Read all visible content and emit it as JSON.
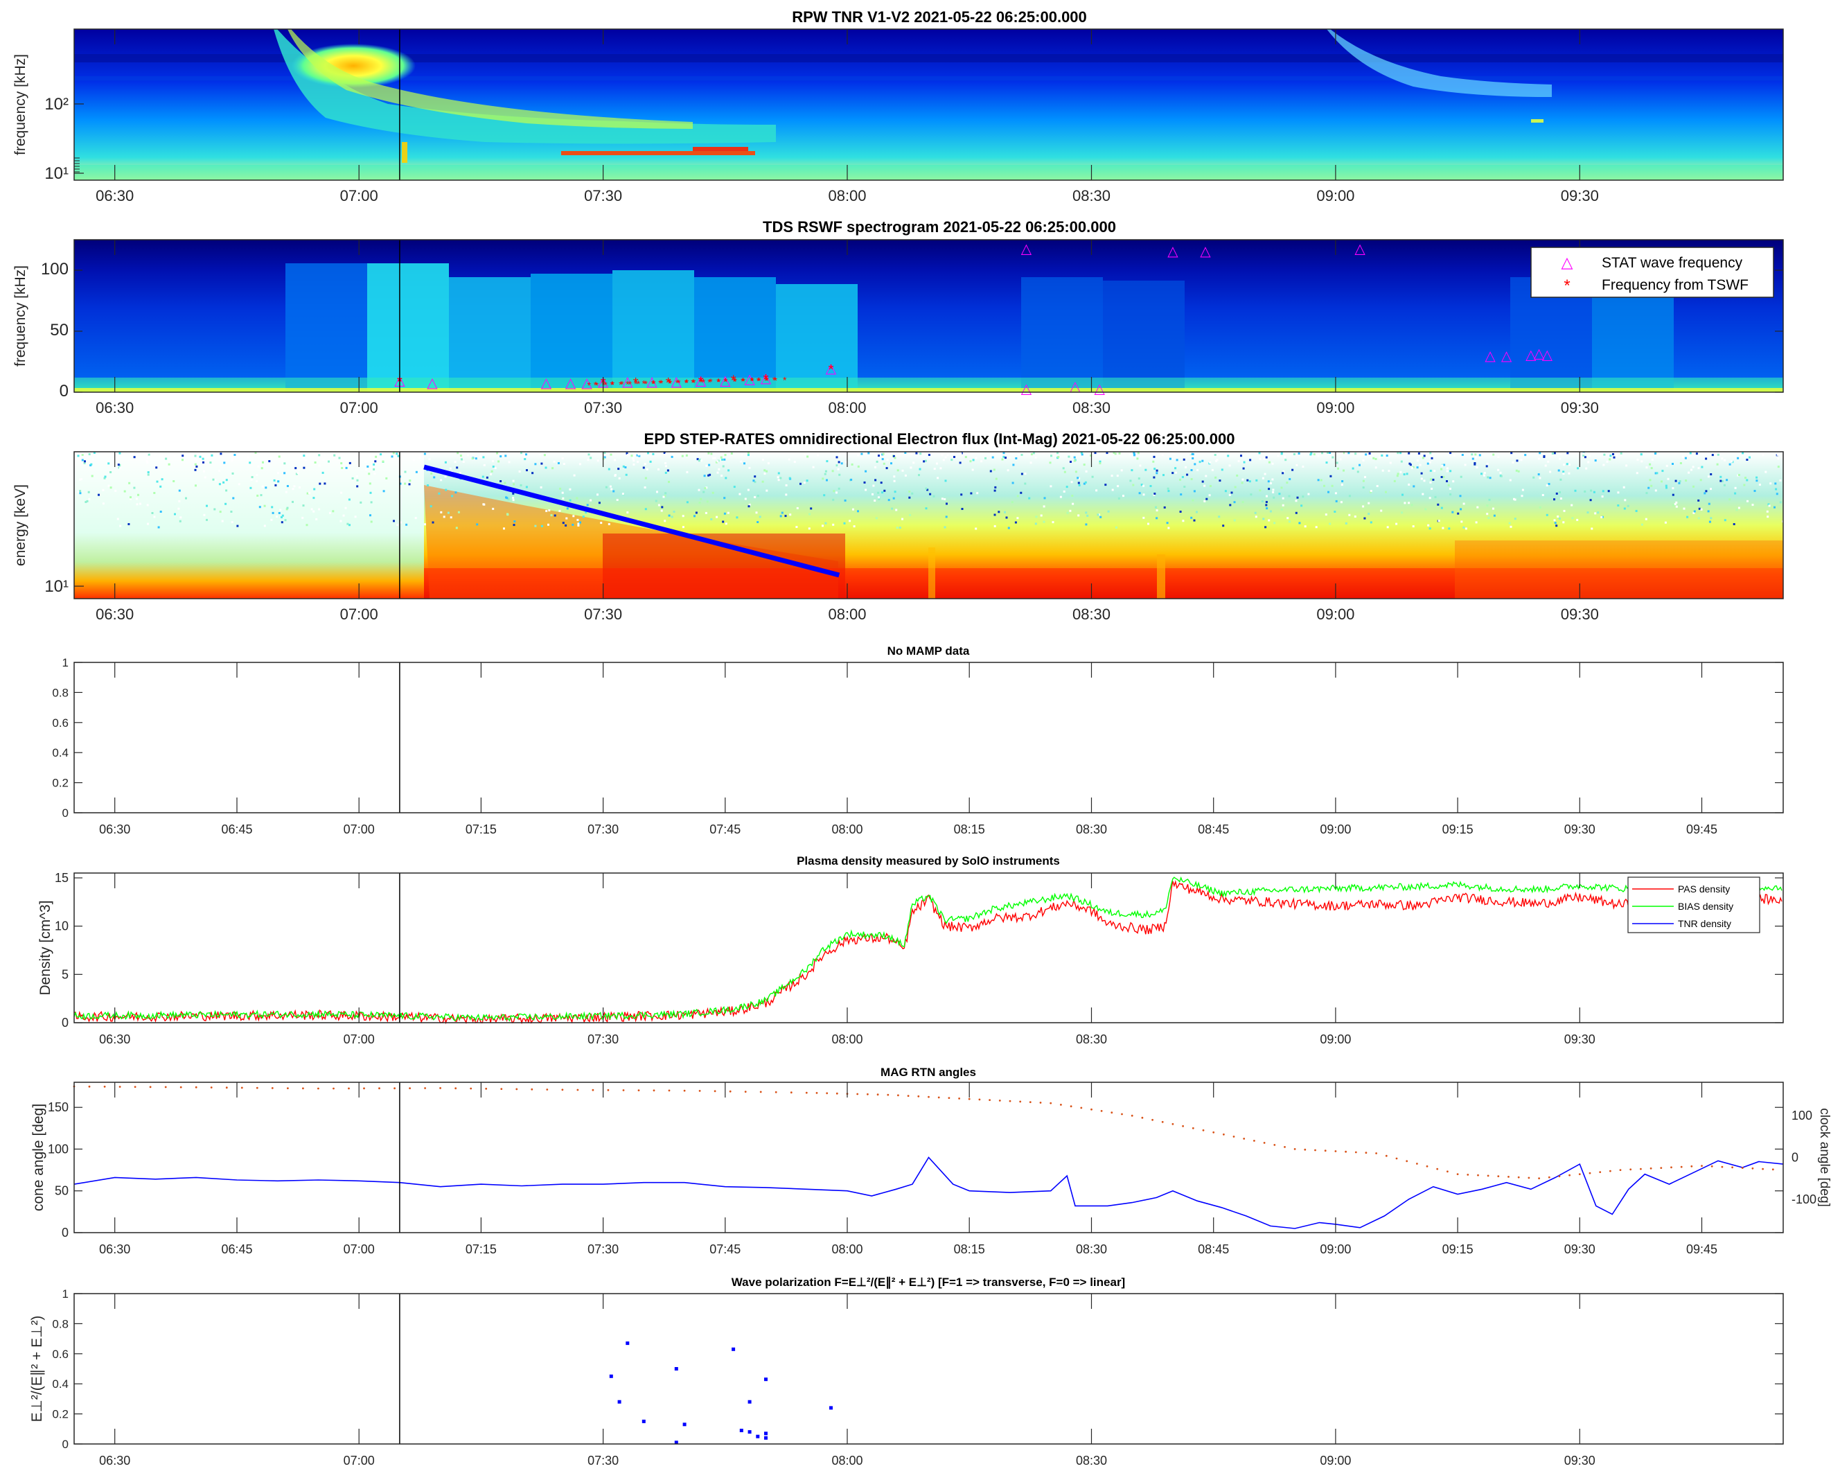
{
  "colors": {
    "cone": "#0072BD",
    "clock": "#D95319",
    "pas": "#ff0000",
    "bias": "#00ff00",
    "tnr": "#0000ff",
    "stat_marker": "#ff00ff",
    "tswf_marker": "#ff0000",
    "onset_line": "#000000",
    "drift_line": "#0000ff"
  },
  "ticks": {
    "half_hour": [
      "06:30",
      "07:00",
      "07:30",
      "08:00",
      "08:30",
      "09:00",
      "09:30"
    ],
    "quarter_hour": [
      "06:30",
      "06:45",
      "07:00",
      "07:15",
      "07:30",
      "07:45",
      "08:00",
      "08:15",
      "08:30",
      "08:45",
      "09:00",
      "09:15",
      "09:30",
      "09:45"
    ]
  },
  "chart_data": [
    {
      "id": "tnr",
      "type": "heatmap",
      "title": "RPW TNR V1-V2 2021-05-22 06:25:00.000",
      "ylabel": "frequency [kHz]",
      "yscale": "log",
      "ytick_labels": [
        "10¹",
        "10²"
      ],
      "xlim": [
        "06:25",
        "09:55"
      ],
      "colormap": "jet",
      "features": [
        "type III radio burst drifting from ~06:50 down to ~07:40",
        "second burst near 09:00",
        "red narrow emission band ~07:35-07:50 near 20 kHz"
      ]
    },
    {
      "id": "tds",
      "type": "heatmap",
      "title": "TDS RSWF spectrogram 2021-05-22 06:25:00.000",
      "ylabel": "frequency [kHz]",
      "ylim": [
        0,
        125
      ],
      "yticks": [
        0,
        50,
        100
      ],
      "xlim": [
        "06:25",
        "09:55"
      ],
      "colormap": "jet",
      "legend": [
        "STAT wave frequency",
        "Frequency from TSWF"
      ],
      "legend_position": "top-right",
      "stat_points": [
        {
          "x": "07:05",
          "y": 10
        },
        {
          "x": "07:09",
          "y": 8
        },
        {
          "x": "07:23",
          "y": 8
        },
        {
          "x": "07:26",
          "y": 8
        },
        {
          "x": "07:28",
          "y": 8
        },
        {
          "x": "07:30",
          "y": 9
        },
        {
          "x": "07:33",
          "y": 9
        },
        {
          "x": "07:36",
          "y": 9
        },
        {
          "x": "07:39",
          "y": 9
        },
        {
          "x": "07:42",
          "y": 10
        },
        {
          "x": "07:45",
          "y": 10
        },
        {
          "x": "07:48",
          "y": 11
        },
        {
          "x": "07:50",
          "y": 12
        },
        {
          "x": "07:58",
          "y": 20
        },
        {
          "x": "08:22",
          "y": 118
        },
        {
          "x": "08:22",
          "y": 3
        },
        {
          "x": "08:28",
          "y": 5
        },
        {
          "x": "08:31",
          "y": 3
        },
        {
          "x": "08:40",
          "y": 116
        },
        {
          "x": "08:44",
          "y": 116
        },
        {
          "x": "09:03",
          "y": 118
        },
        {
          "x": "09:19",
          "y": 30
        },
        {
          "x": "09:21",
          "y": 30
        },
        {
          "x": "09:24",
          "y": 31
        },
        {
          "x": "09:25",
          "y": 32
        },
        {
          "x": "09:26",
          "y": 31
        }
      ],
      "tswf_points": [
        {
          "x": "07:05",
          "y": 10
        },
        {
          "x": "07:30",
          "y": 9
        },
        {
          "x": "07:34",
          "y": 9
        },
        {
          "x": "07:38",
          "y": 9
        },
        {
          "x": "07:42",
          "y": 10
        },
        {
          "x": "07:46",
          "y": 11
        },
        {
          "x": "07:50",
          "y": 12
        },
        {
          "x": "07:58",
          "y": 20
        }
      ]
    },
    {
      "id": "epd",
      "type": "heatmap",
      "title": "EPD STEP-RATES omnidirectional Electron flux (Int-Mag) 2021-05-22 06:25:00.000",
      "ylabel": "energy [keV]",
      "yscale": "log",
      "ytick_labels": [
        "10¹"
      ],
      "xlim": [
        "06:25",
        "09:55"
      ],
      "colormap": "jet",
      "drift_line": {
        "start": {
          "x": "07:08",
          "y": "top"
        },
        "end": {
          "x": "07:59",
          "y": "bottom"
        }
      }
    },
    {
      "id": "mamp",
      "type": "line",
      "title": "No MAMP data",
      "ylim": [
        0,
        1
      ],
      "yticks": [
        0,
        0.2,
        0.4,
        0.6,
        0.8,
        1
      ],
      "xlim": [
        "06:25",
        "09:55"
      ],
      "series": []
    },
    {
      "id": "density",
      "type": "line",
      "title": "Plasma density measured by SolO instruments",
      "ylabel": "Density [cm^3]",
      "ylim": [
        0,
        15.5
      ],
      "yticks": [
        0,
        5,
        10,
        15
      ],
      "xlim": [
        "06:25",
        "09:55"
      ],
      "legend_position": "top-right",
      "series": [
        {
          "name": "PAS density",
          "color": "#ff0000",
          "points": [
            [
              "06:25",
              0.6
            ],
            [
              "06:40",
              0.7
            ],
            [
              "06:55",
              0.8
            ],
            [
              "07:05",
              0.6
            ],
            [
              "07:15",
              0.3
            ],
            [
              "07:30",
              0.6
            ],
            [
              "07:40",
              0.8
            ],
            [
              "07:46",
              1.2
            ],
            [
              "07:50",
              2.0
            ],
            [
              "07:55",
              5.0
            ],
            [
              "07:57",
              7.0
            ],
            [
              "08:00",
              8.6
            ],
            [
              "08:05",
              8.8
            ],
            [
              "08:07",
              7.6
            ],
            [
              "08:08",
              11.4
            ],
            [
              "08:10",
              12.8
            ],
            [
              "08:12",
              10.0
            ],
            [
              "08:15",
              9.8
            ],
            [
              "08:18",
              10.8
            ],
            [
              "08:22",
              11.0
            ],
            [
              "08:27",
              12.4
            ],
            [
              "08:30",
              11.6
            ],
            [
              "08:32",
              10.2
            ],
            [
              "08:37",
              9.6
            ],
            [
              "08:39",
              10.0
            ],
            [
              "08:40",
              14.4
            ],
            [
              "08:43",
              13.6
            ],
            [
              "08:46",
              12.8
            ],
            [
              "08:50",
              12.6
            ],
            [
              "08:55",
              12.3
            ],
            [
              "09:00",
              12.1
            ],
            [
              "09:05",
              12.3
            ],
            [
              "09:10",
              12.1
            ],
            [
              "09:15",
              13.0
            ],
            [
              "09:20",
              12.6
            ],
            [
              "09:25",
              12.3
            ],
            [
              "09:30",
              13.0
            ],
            [
              "09:35",
              12.2
            ],
            [
              "09:40",
              12.9
            ],
            [
              "09:45",
              13.0
            ],
            [
              "09:50",
              12.9
            ],
            [
              "09:55",
              12.7
            ]
          ]
        },
        {
          "name": "BIAS density",
          "color": "#00ff00",
          "points": [
            [
              "06:25",
              0.7
            ],
            [
              "06:40",
              0.8
            ],
            [
              "06:55",
              0.9
            ],
            [
              "07:05",
              0.7
            ],
            [
              "07:15",
              0.5
            ],
            [
              "07:30",
              0.7
            ],
            [
              "07:40",
              0.9
            ],
            [
              "07:46",
              1.4
            ],
            [
              "07:50",
              2.3
            ],
            [
              "07:55",
              5.5
            ],
            [
              "07:57",
              7.6
            ],
            [
              "08:00",
              9.2
            ],
            [
              "08:05",
              9.0
            ],
            [
              "08:07",
              8.0
            ],
            [
              "08:08",
              12.2
            ],
            [
              "08:10",
              13.2
            ],
            [
              "08:12",
              10.6
            ],
            [
              "08:15",
              10.8
            ],
            [
              "08:18",
              11.8
            ],
            [
              "08:22",
              12.4
            ],
            [
              "08:27",
              13.2
            ],
            [
              "08:30",
              12.2
            ],
            [
              "08:32",
              11.4
            ],
            [
              "08:37",
              11.2
            ],
            [
              "08:39",
              11.6
            ],
            [
              "08:40",
              15.0
            ],
            [
              "08:43",
              14.2
            ],
            [
              "08:46",
              13.4
            ],
            [
              "08:50",
              13.6
            ],
            [
              "08:55",
              13.8
            ],
            [
              "09:00",
              13.9
            ],
            [
              "09:05",
              14.0
            ],
            [
              "09:10",
              14.1
            ],
            [
              "09:15",
              14.3
            ],
            [
              "09:20",
              13.9
            ],
            [
              "09:25",
              13.8
            ],
            [
              "09:30",
              14.2
            ],
            [
              "09:35",
              13.9
            ],
            [
              "09:40",
              13.9
            ],
            [
              "09:45",
              14.0
            ],
            [
              "09:50",
              14.1
            ],
            [
              "09:55",
              14.0
            ]
          ]
        },
        {
          "name": "TNR density",
          "color": "#0000ff",
          "points": []
        }
      ]
    },
    {
      "id": "mag",
      "type": "line",
      "title": "MAG RTN angles",
      "ylabel": "cone angle [deg]",
      "y2label": "clock angle [deg]",
      "ylim": [
        0,
        180
      ],
      "yticks": [
        0,
        50,
        100,
        150
      ],
      "y2lim": [
        -180,
        180
      ],
      "y2ticks": [
        -100,
        0,
        100
      ],
      "xlim": [
        "06:25",
        "09:55"
      ],
      "series": [
        {
          "name": "cone angle",
          "color": "#0000ff",
          "points": [
            [
              "06:25",
              58
            ],
            [
              "06:30",
              66
            ],
            [
              "06:35",
              64
            ],
            [
              "06:40",
              66
            ],
            [
              "06:45",
              63
            ],
            [
              "06:50",
              62
            ],
            [
              "06:55",
              63
            ],
            [
              "07:00",
              62
            ],
            [
              "07:05",
              60
            ],
            [
              "07:10",
              55
            ],
            [
              "07:15",
              58
            ],
            [
              "07:20",
              56
            ],
            [
              "07:25",
              58
            ],
            [
              "07:30",
              58
            ],
            [
              "07:35",
              60
            ],
            [
              "07:40",
              60
            ],
            [
              "07:45",
              55
            ],
            [
              "07:50",
              54
            ],
            [
              "07:55",
              52
            ],
            [
              "08:00",
              50
            ],
            [
              "08:03",
              44
            ],
            [
              "08:06",
              52
            ],
            [
              "08:08",
              58
            ],
            [
              "08:10",
              90
            ],
            [
              "08:13",
              58
            ],
            [
              "08:15",
              50
            ],
            [
              "08:20",
              48
            ],
            [
              "08:25",
              50
            ],
            [
              "08:27",
              68
            ],
            [
              "08:28",
              32
            ],
            [
              "08:32",
              32
            ],
            [
              "08:35",
              36
            ],
            [
              "08:38",
              42
            ],
            [
              "08:40",
              50
            ],
            [
              "08:43",
              38
            ],
            [
              "08:46",
              30
            ],
            [
              "08:49",
              20
            ],
            [
              "08:52",
              8
            ],
            [
              "08:55",
              5
            ],
            [
              "08:58",
              12
            ],
            [
              "09:00",
              10
            ],
            [
              "09:03",
              6
            ],
            [
              "09:06",
              20
            ],
            [
              "09:09",
              40
            ],
            [
              "09:12",
              55
            ],
            [
              "09:15",
              46
            ],
            [
              "09:18",
              52
            ],
            [
              "09:21",
              60
            ],
            [
              "09:24",
              52
            ],
            [
              "09:27",
              66
            ],
            [
              "09:30",
              82
            ],
            [
              "09:32",
              32
            ],
            [
              "09:34",
              22
            ],
            [
              "09:36",
              52
            ],
            [
              "09:38",
              70
            ],
            [
              "09:41",
              58
            ],
            [
              "09:44",
              72
            ],
            [
              "09:47",
              86
            ],
            [
              "09:50",
              78
            ],
            [
              "09:52",
              85
            ],
            [
              "09:55",
              82
            ]
          ]
        },
        {
          "name": "clock angle",
          "color": "#D95319",
          "points": [
            [
              "06:25",
              170
            ],
            [
              "06:40",
              168
            ],
            [
              "06:55",
              165
            ],
            [
              "07:10",
              166
            ],
            [
              "07:25",
              162
            ],
            [
              "07:40",
              160
            ],
            [
              "07:55",
              155
            ],
            [
              "08:05",
              150
            ],
            [
              "08:15",
              140
            ],
            [
              "08:25",
              130
            ],
            [
              "08:35",
              100
            ],
            [
              "08:45",
              60
            ],
            [
              "08:55",
              20
            ],
            [
              "09:05",
              10
            ],
            [
              "09:15",
              -40
            ],
            [
              "09:25",
              -50
            ],
            [
              "09:35",
              -30
            ],
            [
              "09:45",
              -20
            ],
            [
              "09:55",
              -30
            ]
          ]
        }
      ]
    },
    {
      "id": "polarization",
      "type": "scatter",
      "title": "Wave polarization  F=E⊥²/(E∥² + E⊥²) [F=1 => transverse, F=0 => linear]",
      "ylabel": "E⊥²/(E∥² + E⊥²)",
      "ylim": [
        0,
        1
      ],
      "yticks": [
        0,
        0.2,
        0.4,
        0.6,
        0.8,
        1
      ],
      "xlim": [
        "06:25",
        "09:55"
      ],
      "series": [
        {
          "name": "F",
          "color": "#0000ff",
          "points": [
            [
              "07:31",
              0.45
            ],
            [
              "07:32",
              0.28
            ],
            [
              "07:33",
              0.67
            ],
            [
              "07:35",
              0.15
            ],
            [
              "07:39",
              0.5
            ],
            [
              "07:39",
              0.01
            ],
            [
              "07:40",
              0.13
            ],
            [
              "07:46",
              0.63
            ],
            [
              "07:47",
              0.09
            ],
            [
              "07:48",
              0.08
            ],
            [
              "07:48",
              0.28
            ],
            [
              "07:49",
              0.05
            ],
            [
              "07:50",
              0.04
            ],
            [
              "07:50",
              0.43
            ],
            [
              "07:50",
              0.07
            ],
            [
              "07:58",
              0.24
            ]
          ]
        }
      ]
    }
  ]
}
